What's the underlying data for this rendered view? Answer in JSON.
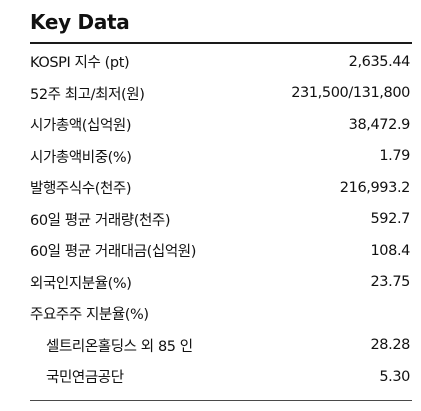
{
  "title": "Key Data",
  "rows": [
    {
      "label": "KOSPI 지수 (pt)",
      "value": "2,635.44"
    },
    {
      "label": "52주 최고/최저(원)",
      "value": "231,500/131,800"
    },
    {
      "label": "시가총액(십억원)",
      "value": "38,472.9"
    },
    {
      "label": "시가총액비중(%)",
      "value": "1.79"
    },
    {
      "label": "발행주식수(천주)",
      "value": "216,993.2"
    },
    {
      "label": "60일 평균 거래량(천주)",
      "value": "592.7"
    },
    {
      "label": "60일 평균 거래대금(십억원)",
      "value": "108.4"
    },
    {
      "label": "외국인지분율(%)",
      "value": "23.75"
    },
    {
      "label": "주요주주 지분율(%)",
      "value": ""
    },
    {
      "label": "셀트리온홀딩스 외 85 인",
      "value": "28.28"
    },
    {
      "label": "국민연금공단",
      "value": "5.30"
    }
  ]
}
